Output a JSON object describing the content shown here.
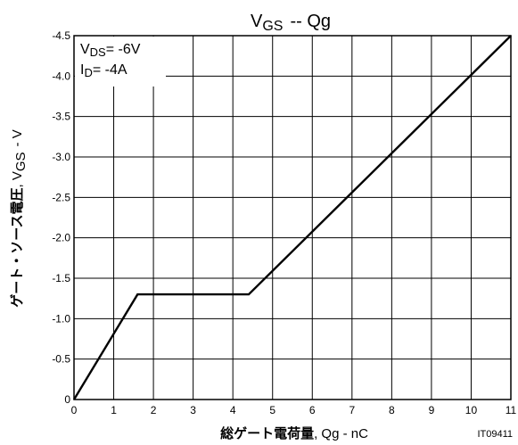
{
  "chart_data": {
    "type": "line",
    "title": "VGS -- Qg",
    "title_parts": {
      "v": "V",
      "sub": "GS",
      "rest": "--  Qg"
    },
    "xlabel_bold": "総ゲート電荷量",
    "xlabel_rest": "Qg - nC",
    "ylabel_bold": "ゲート・ソース電圧",
    "ylabel_rest_prefix": "V",
    "ylabel_rest_sub": "GS",
    "ylabel_rest_suffix": "- V",
    "xlim": [
      0,
      11
    ],
    "ylim": [
      0,
      -4.5
    ],
    "x_ticks": [
      "0",
      "1",
      "2",
      "3",
      "4",
      "5",
      "6",
      "7",
      "8",
      "9",
      "10",
      "11"
    ],
    "y_ticks": [
      "0",
      "-0.5",
      "-1.0",
      "-1.5",
      "-2.0",
      "-2.5",
      "-3.0",
      "-3.5",
      "-4.0",
      "-4.5"
    ],
    "grid": true,
    "conditions": [
      {
        "main": "V",
        "sub": "DS",
        "rest": "= -6V"
      },
      {
        "main": "I",
        "sub": "D",
        "rest": "= -4A"
      }
    ],
    "figure_id": "IT09411",
    "series": [
      {
        "x": [
          0,
          1.6,
          4.4,
          11
        ],
        "y": [
          0,
          -1.3,
          -1.3,
          -4.5
        ]
      }
    ]
  }
}
